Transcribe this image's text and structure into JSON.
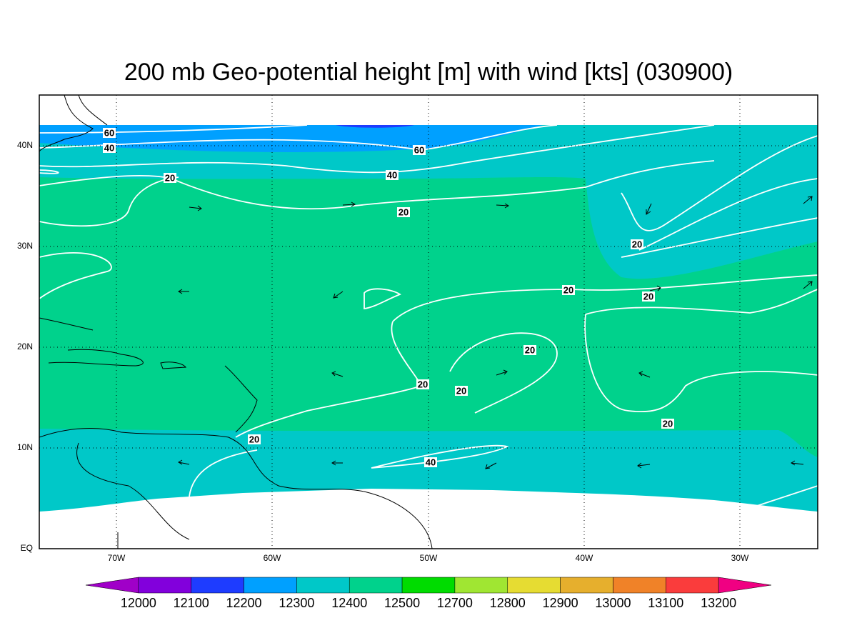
{
  "title": "200 mb Geo-potential height [m] with wind [kts] (030900)",
  "map": {
    "lon_ticks": [
      "70W",
      "60W",
      "50W",
      "40W",
      "30W"
    ],
    "lat_ticks": [
      "EQ",
      "10N",
      "20N",
      "30N",
      "40N"
    ],
    "contour_labels": [
      "60",
      "40",
      "60",
      "40",
      "20",
      "20",
      "20",
      "20",
      "20",
      "20",
      "20",
      "20",
      "20",
      "20",
      "40"
    ]
  },
  "colorbar": {
    "labels": [
      12000,
      12100,
      12200,
      12300,
      12400,
      12500,
      12700,
      12800,
      12900,
      13000,
      13100,
      13200
    ],
    "colors": [
      "#a000c8",
      "#8200dc",
      "#1e3cff",
      "#00a0ff",
      "#00c8c8",
      "#00d28c",
      "#00dc00",
      "#a0e632",
      "#e6dc32",
      "#e6af2d",
      "#f08228",
      "#fa3c3c",
      "#f00082"
    ]
  }
}
